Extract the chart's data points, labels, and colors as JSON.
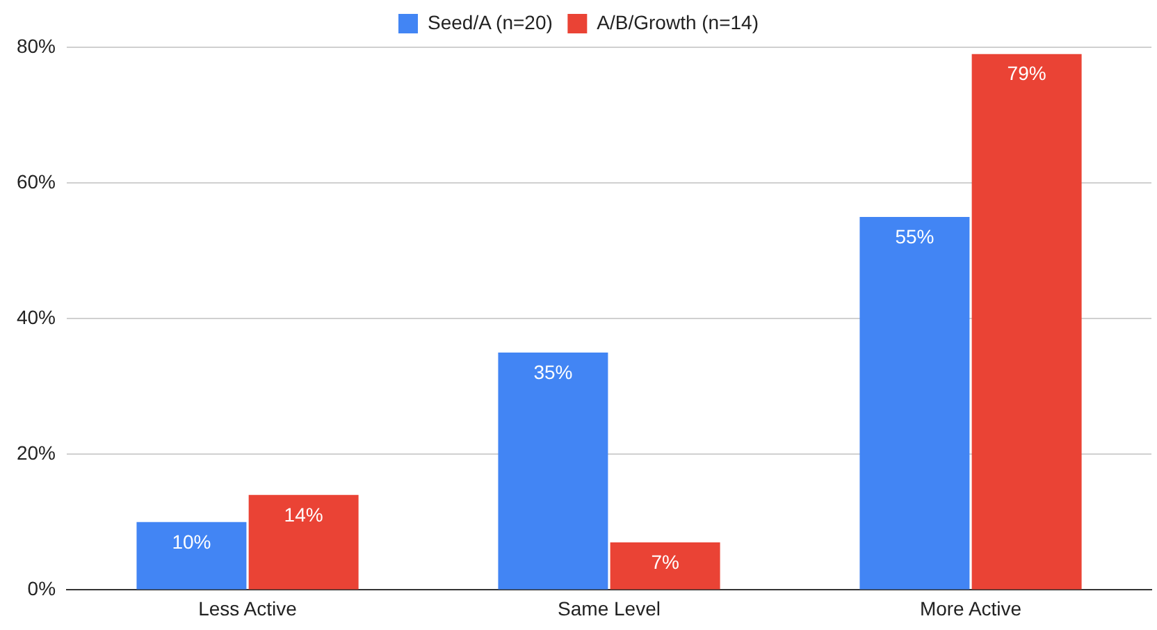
{
  "chart_data": {
    "type": "bar",
    "categories": [
      "Less Active",
      "Same Level",
      "More Active"
    ],
    "series": [
      {
        "name": "Seed/A (n=20)",
        "color": "#4285f4",
        "values": [
          10,
          35,
          55
        ],
        "value_labels": [
          "10%",
          "35%",
          "55%"
        ]
      },
      {
        "name": "A/B/Growth (n=14)",
        "color": "#ea4335",
        "values": [
          14,
          7,
          79
        ],
        "value_labels": [
          "14%",
          "7%",
          "79%"
        ]
      }
    ],
    "ylim": [
      0,
      80
    ],
    "yticks": [
      {
        "value": 0,
        "label": "0%"
      },
      {
        "value": 20,
        "label": "20%"
      },
      {
        "value": 40,
        "label": "40%"
      },
      {
        "value": 60,
        "label": "60%"
      },
      {
        "value": 80,
        "label": "80%"
      }
    ],
    "grid": "y",
    "legend": "top"
  }
}
